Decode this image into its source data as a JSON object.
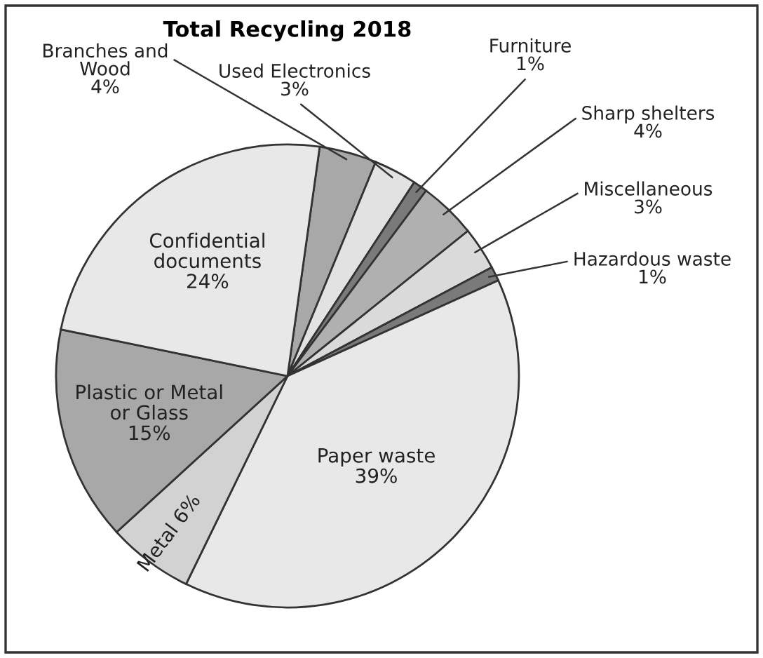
{
  "chart_data": {
    "type": "pie",
    "title": "Total Recycling 2018",
    "categories": [
      "Branches and\nWood",
      "Used Electronics",
      "Furniture",
      "Sharp shelters",
      "Miscellaneous",
      "Hazardous waste",
      "Paper waste",
      "Metal",
      "Plastic or Metal\nor Glass",
      "Confidential\ndocuments"
    ],
    "values": [
      4,
      3,
      1,
      4,
      3,
      1,
      39,
      6,
      15,
      24
    ],
    "colors": [
      "#a8a8a8",
      "#e2e2e2",
      "#7a7a7a",
      "#b0b0b0",
      "#dadada",
      "#7a7a7a",
      "#e8e8e8",
      "#d2d2d2",
      "#a8a8a8",
      "#e8e8e8"
    ],
    "value_labels": [
      "4%",
      "3%",
      "1%",
      "4%",
      "3%",
      "1%",
      "39%",
      "6%",
      "15%",
      "24%"
    ]
  }
}
